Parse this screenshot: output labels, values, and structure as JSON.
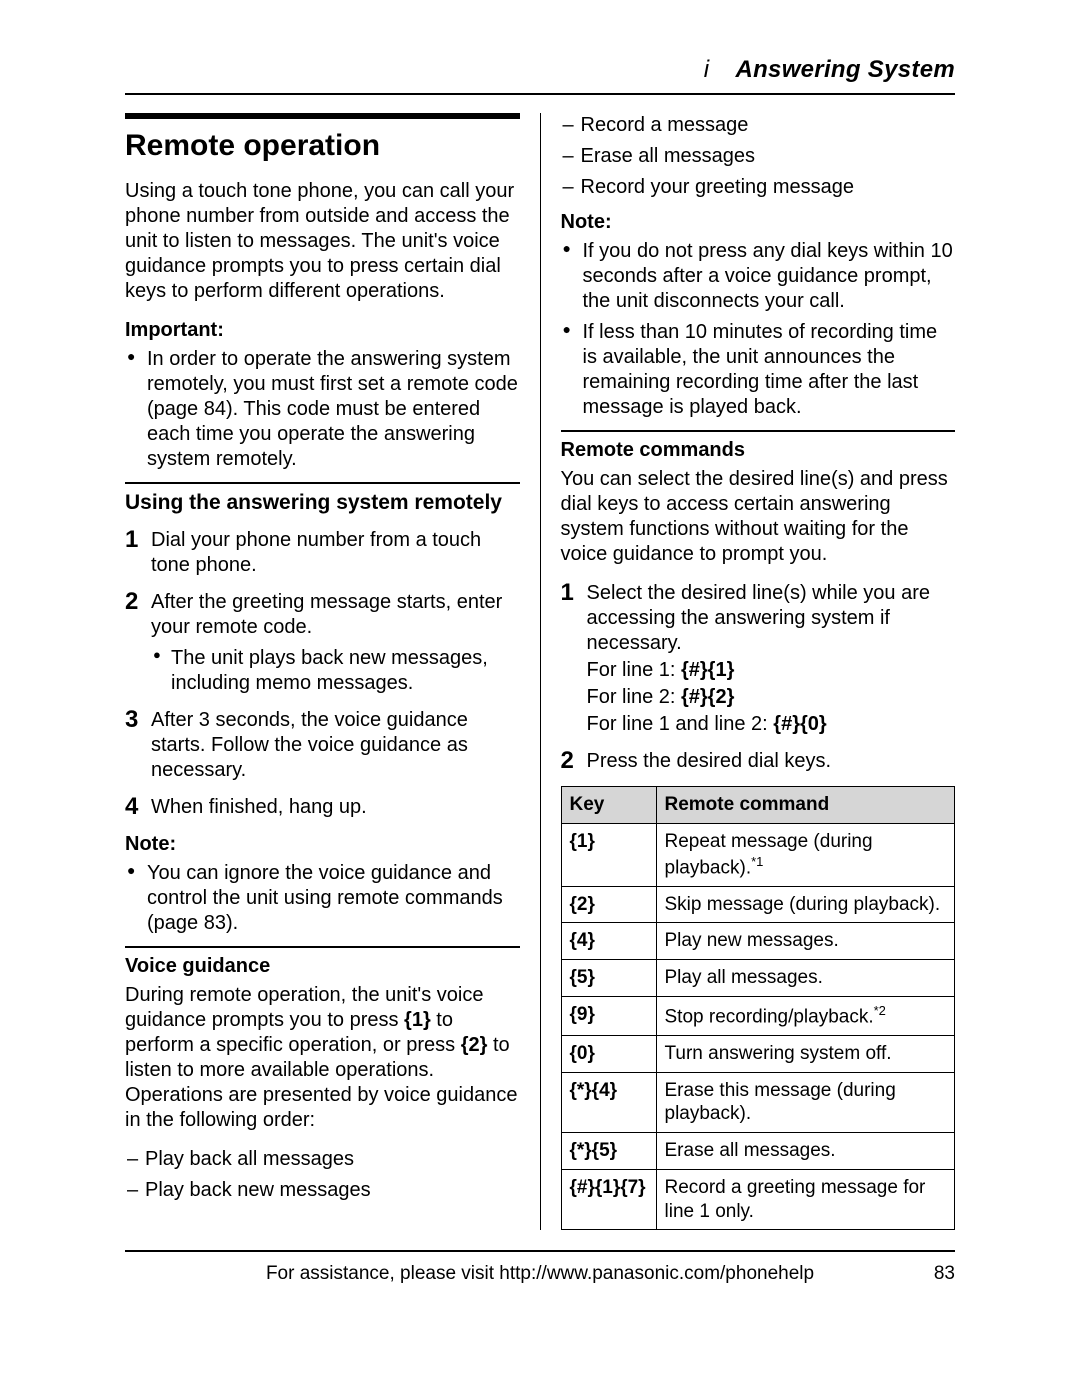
{
  "header": {
    "prefix": "i",
    "chapter": "Answering System"
  },
  "left": {
    "title": "Remote operation",
    "intro": "Using a touch tone phone, you can call your phone number from outside and access the unit to listen to messages. The unit's voice guidance prompts you to press certain dial keys to perform different operations.",
    "importantLabel": "Important:",
    "importantItems": [
      "In order to operate the answering system remotely, you must first set a remote code (page 84). This code must be entered each time you operate the answering system remotely."
    ],
    "subsection": "Using the answering system remotely",
    "steps": [
      {
        "text": "Dial your phone number from a touch tone phone."
      },
      {
        "text": "After the greeting message starts, enter your remote code.",
        "sub": [
          "The unit plays back new messages, including memo messages."
        ]
      },
      {
        "text": "After 3 seconds, the voice guidance starts. Follow the voice guidance as necessary."
      },
      {
        "text": "When finished, hang up."
      }
    ],
    "noteLabel": "Note:",
    "noteItems": [
      "You can ignore the voice guidance and control the unit using remote commands (page 83)."
    ],
    "voiceGuidanceLabel": "Voice guidance",
    "voiceGuidancePre": "During remote operation, the unit's voice guidance prompts you to press ",
    "voiceGuidanceKey1": "{1}",
    "voiceGuidanceMid": " to perform a specific operation, or press ",
    "voiceGuidanceKey2": "{2}",
    "voiceGuidancePost": " to listen to more available operations. Operations are presented by voice guidance in the following order:",
    "voiceOrder": [
      "Play back all messages",
      "Play back new messages"
    ]
  },
  "right": {
    "voiceOrderCont": [
      "Record a message",
      "Erase all messages",
      "Record your greeting message"
    ],
    "noteLabel": "Note:",
    "noteItems": [
      "If you do not press any dial keys within 10 seconds after a voice guidance prompt, the unit disconnects your call.",
      "If less than 10 minutes of recording time is available, the unit announces the remaining recording time after the last message is played back."
    ],
    "remoteCmdLabel": "Remote commands",
    "remoteCmdIntro": "You can select the desired line(s) and press dial keys to access certain answering system functions without waiting for the voice guidance to prompt you.",
    "steps": [
      {
        "text": "Select the desired line(s) while you are accessing the answering system if necessary.",
        "lines": [
          {
            "label": "For line 1: ",
            "keys": "{#}{1}"
          },
          {
            "label": "For line 2: ",
            "keys": "{#}{2}"
          },
          {
            "label": "For line 1 and line 2: ",
            "keys": "{#}{0}"
          }
        ]
      },
      {
        "text": "Press the desired dial keys."
      }
    ],
    "table": {
      "headKey": "Key",
      "headCmd": "Remote command",
      "rows": [
        {
          "key": "{1}",
          "cmd": "Repeat message (during playback).",
          "sup": "*1"
        },
        {
          "key": "{2}",
          "cmd": "Skip message (during playback)."
        },
        {
          "key": "{4}",
          "cmd": "Play new messages."
        },
        {
          "key": "{5}",
          "cmd": "Play all messages."
        },
        {
          "key": "{9}",
          "cmd": "Stop recording/playback.",
          "sup": "*2"
        },
        {
          "key": "{0}",
          "cmd": "Turn answering system off."
        },
        {
          "key": "{*}{4}",
          "cmd": "Erase this message (during playback)."
        },
        {
          "key": "{*}{5}",
          "cmd": "Erase all messages."
        },
        {
          "key": "{#}{1}{7}",
          "cmd": "Record a greeting message for line 1 only."
        }
      ]
    }
  },
  "footer": {
    "text": "For assistance, please visit http://www.panasonic.com/phonehelp",
    "page": "83"
  }
}
